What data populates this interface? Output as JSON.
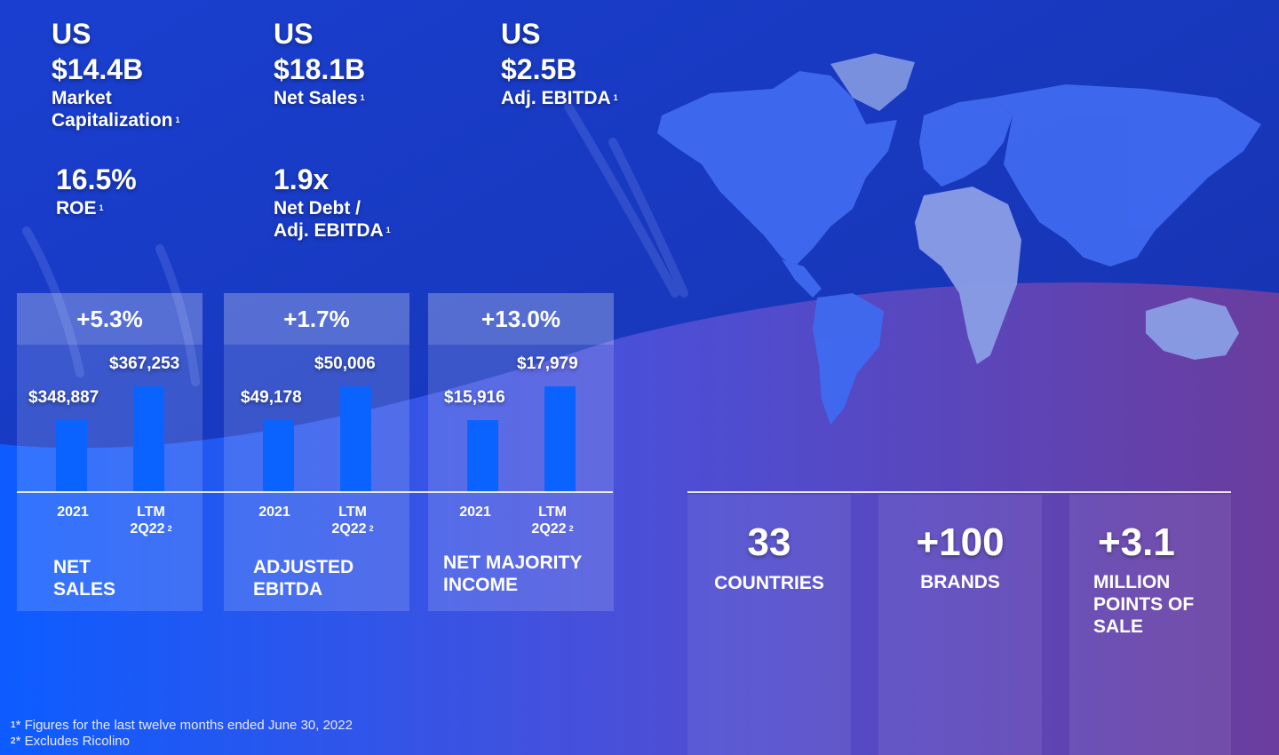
{
  "stats_top": [
    {
      "currency": "US",
      "value": "$14.4B",
      "label_line1": "Market",
      "label_line2": "Capitalization",
      "note": "1"
    },
    {
      "currency": "US",
      "value": "$18.1B",
      "label_line1": "Net Sales",
      "note": "1"
    },
    {
      "currency": "US",
      "value": "$2.5B",
      "label_line1": "Adj. EBITDA",
      "note": "1"
    }
  ],
  "stats_mid": [
    {
      "value": "16.5%",
      "label_line1": "ROE",
      "note": "1"
    },
    {
      "value": "1.9x",
      "label_line1": "Net Debt /",
      "label_line2": "Adj. EBITDA",
      "note": "1"
    }
  ],
  "colors": {
    "accent_bar": "#0a63ff",
    "background_blue": "#1636b8",
    "background_purple": "#6b3d9c",
    "map_fill": "#3f6af0"
  },
  "chart_data": [
    {
      "type": "bar",
      "change": "+5.3%",
      "title_line1": "NET",
      "title_line2": "SALES",
      "categories": [
        "2021",
        "LTM 2Q22"
      ],
      "value_labels": [
        "$348,887",
        "$367,253"
      ],
      "values": [
        348887,
        367253
      ],
      "note": "2"
    },
    {
      "type": "bar",
      "change": "+1.7%",
      "title_line1": "ADJUSTED",
      "title_line2": "EBITDA",
      "categories": [
        "2021",
        "LTM 2Q22"
      ],
      "value_labels": [
        "$49,178",
        "$50,006"
      ],
      "values": [
        49178,
        50006
      ],
      "note": "2"
    },
    {
      "type": "bar",
      "change": "+13.0%",
      "title_line1": "NET MAJORITY",
      "title_line2": "INCOME",
      "categories": [
        "2021",
        "LTM 2Q22"
      ],
      "value_labels": [
        "$15,916",
        "$17,979"
      ],
      "values": [
        15916,
        17979
      ],
      "note": "2"
    }
  ],
  "kpis": [
    {
      "value": "33",
      "label_line1": "COUNTRIES"
    },
    {
      "value": "+100",
      "label_line1": "BRANDS"
    },
    {
      "value": "+3.1",
      "label_line1": "MILLION",
      "label_line2": "POINTS OF",
      "label_line3": "SALE"
    }
  ],
  "footnotes": [
    {
      "mark": "1",
      "text": "* Figures for the last twelve months ended June 30, 2022"
    },
    {
      "mark": "2",
      "text": "* Excludes Ricolino"
    }
  ]
}
